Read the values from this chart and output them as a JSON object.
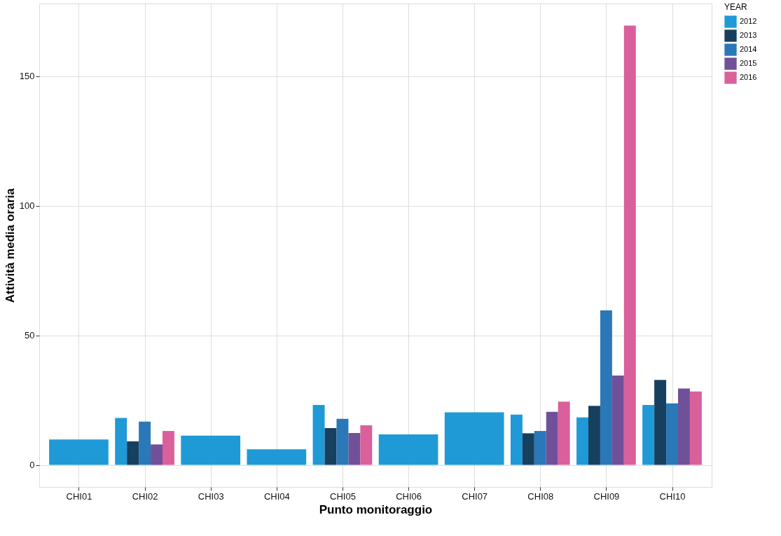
{
  "chart_data": {
    "type": "bar",
    "xlabel": "Punto monitoraggio",
    "ylabel": "Attività media oraria",
    "legend_title": "YEAR",
    "categories": [
      "CHI01",
      "CHI02",
      "CHI03",
      "CHI04",
      "CHI05",
      "CHI06",
      "CHI07",
      "CHI08",
      "CHI09",
      "CHI10"
    ],
    "series": [
      {
        "name": "2012",
        "color": "#1f9ad6",
        "values": [
          9.8,
          18.1,
          11.3,
          6.0,
          23.1,
          11.8,
          20.3,
          19.4,
          18.3,
          23.1
        ]
      },
      {
        "name": "2013",
        "color": "#17405f",
        "values": [
          null,
          9.1,
          null,
          null,
          14.2,
          null,
          null,
          12.2,
          22.8,
          32.8
        ]
      },
      {
        "name": "2014",
        "color": "#2a78b8",
        "values": [
          null,
          16.7,
          null,
          null,
          17.8,
          null,
          null,
          13.1,
          59.6,
          23.7
        ]
      },
      {
        "name": "2015",
        "color": "#71509a",
        "values": [
          null,
          7.9,
          null,
          null,
          12.3,
          null,
          null,
          20.5,
          34.5,
          29.5
        ]
      },
      {
        "name": "2016",
        "color": "#d9609b",
        "values": [
          null,
          13.1,
          null,
          null,
          15.3,
          null,
          null,
          24.4,
          169.5,
          28.3
        ]
      }
    ],
    "ylim": [
      -8.5,
      178
    ],
    "yticks": [
      0,
      50,
      100,
      150
    ],
    "grid": true,
    "legend": "right"
  }
}
